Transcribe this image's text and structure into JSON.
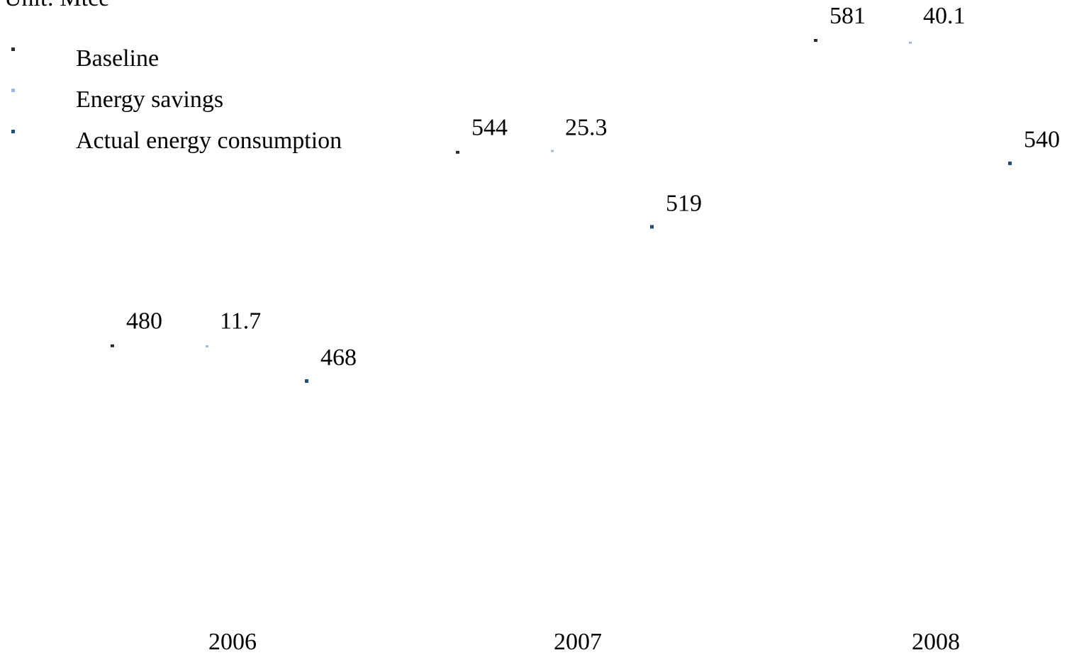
{
  "chart_data": {
    "type": "bar",
    "subtitle": "Unit: Mtce",
    "categories": [
      "2006",
      "2007",
      "2008"
    ],
    "series": [
      {
        "name": "Baseline",
        "color": "#2b2b2b",
        "values": [
          480,
          544,
          581
        ]
      },
      {
        "name": "Energy savings",
        "color": "#9dbbe0",
        "values": [
          11.7,
          25.3,
          40.1
        ]
      },
      {
        "name": "Actual energy consumption",
        "color": "#1f4e79",
        "values": [
          468,
          519,
          540
        ]
      }
    ],
    "legend": "top-left"
  }
}
